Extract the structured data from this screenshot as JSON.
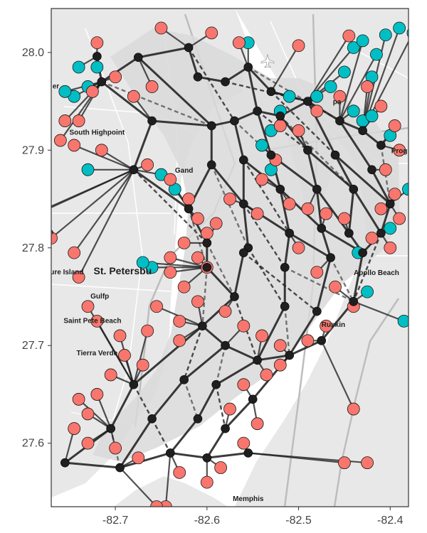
{
  "chart_data": {
    "type": "scatter",
    "xlim": [
      -82.77,
      -82.38
    ],
    "ylim": [
      27.535,
      28.045
    ],
    "x_ticks": [
      {
        "value": -82.7,
        "label": "-82.7"
      },
      {
        "value": -82.6,
        "label": "-82.6"
      },
      {
        "value": -82.5,
        "label": "-82.5"
      },
      {
        "value": -82.4,
        "label": "-82.4"
      }
    ],
    "y_ticks": [
      {
        "value": 27.6,
        "label": "27.6"
      },
      {
        "value": 27.7,
        "label": "27.7"
      },
      {
        "value": 27.8,
        "label": "27.8"
      },
      {
        "value": 27.9,
        "label": "27.9"
      },
      {
        "value": 28.0,
        "label": "28.0"
      }
    ],
    "grid": false,
    "legend": "none",
    "colors": {
      "panel_border": "#333333",
      "water": "#ffffff",
      "land": "#e8e8e8",
      "service_area": "#d9d9d9",
      "road": "#ffffff",
      "highway": "#bdbdbd",
      "red_points": "#f8766d",
      "teal_points": "#00bfc4",
      "hub": "#1f1f1f",
      "edge": "#1a1a1a"
    },
    "place_labels": [
      {
        "name": "South Highpoint",
        "lon": -82.72,
        "lat": 27.916
      },
      {
        "name": "Gand",
        "lon": -82.625,
        "lat": 27.877
      },
      {
        "name": "St. Petersbu",
        "lon": -82.692,
        "lat": 27.773,
        "big": true
      },
      {
        "name": "ure Island",
        "lon": -82.753,
        "lat": 27.773
      },
      {
        "name": "Gulfp",
        "lon": -82.717,
        "lat": 27.748
      },
      {
        "name": "Saint Pete Beach",
        "lon": -82.725,
        "lat": 27.723
      },
      {
        "name": "Tierra Verde",
        "lon": -82.72,
        "lat": 27.69
      },
      {
        "name": "Apollo Beach",
        "lon": -82.415,
        "lat": 27.772
      },
      {
        "name": "Ruskin",
        "lon": -82.462,
        "lat": 27.719
      },
      {
        "name": "Prog",
        "lon": -82.39,
        "lat": 27.897
      },
      {
        "name": "pa",
        "lon": -82.458,
        "lat": 27.947
      },
      {
        "name": "er",
        "lon": -82.765,
        "lat": 27.963
      },
      {
        "name": "n",
        "lon": -82.77,
        "lat": 27.814
      },
      {
        "name": "Memphis",
        "lon": -82.555,
        "lat": 27.541
      }
    ],
    "hubs": [
      [
        -82.72,
        27.996
      ],
      [
        -82.715,
        27.97
      ],
      [
        -82.675,
        27.995
      ],
      [
        -82.62,
        28.005
      ],
      [
        -82.61,
        27.975
      ],
      [
        -82.58,
        27.97
      ],
      [
        -82.555,
        27.985
      ],
      [
        -82.53,
        27.96
      ],
      [
        -82.66,
        27.93
      ],
      [
        -82.595,
        27.925
      ],
      [
        -82.57,
        27.93
      ],
      [
        -82.545,
        27.94
      ],
      [
        -82.52,
        27.935
      ],
      [
        -82.49,
        27.95
      ],
      [
        -82.455,
        27.93
      ],
      [
        -82.43,
        27.92
      ],
      [
        -82.41,
        27.905
      ],
      [
        -82.68,
        27.88
      ],
      [
        -82.595,
        27.885
      ],
      [
        -82.56,
        27.89
      ],
      [
        -82.53,
        27.895
      ],
      [
        -82.49,
        27.9
      ],
      [
        -82.46,
        27.895
      ],
      [
        -82.42,
        27.88
      ],
      [
        -82.62,
        27.84
      ],
      [
        -82.56,
        27.845
      ],
      [
        -82.52,
        27.86
      ],
      [
        -82.48,
        27.86
      ],
      [
        -82.44,
        27.86
      ],
      [
        -82.4,
        27.845
      ],
      [
        -82.6,
        27.805
      ],
      [
        -82.555,
        27.8
      ],
      [
        -82.51,
        27.815
      ],
      [
        -82.475,
        27.82
      ],
      [
        -82.445,
        27.815
      ],
      [
        -82.41,
        27.815
      ],
      [
        -82.6,
        27.78
      ],
      [
        -82.56,
        27.795
      ],
      [
        -82.515,
        27.78
      ],
      [
        -82.465,
        27.79
      ],
      [
        -82.43,
        27.795
      ],
      [
        -82.57,
        27.75
      ],
      [
        -82.515,
        27.74
      ],
      [
        -82.48,
        27.735
      ],
      [
        -82.44,
        27.745
      ],
      [
        -82.605,
        27.72
      ],
      [
        -82.58,
        27.7
      ],
      [
        -82.545,
        27.685
      ],
      [
        -82.51,
        27.69
      ],
      [
        -82.475,
        27.705
      ],
      [
        -82.68,
        27.66
      ],
      [
        -82.625,
        27.665
      ],
      [
        -82.59,
        27.66
      ],
      [
        -82.55,
        27.645
      ],
      [
        -82.705,
        27.615
      ],
      [
        -82.66,
        27.625
      ],
      [
        -82.61,
        27.625
      ],
      [
        -82.58,
        27.615
      ],
      [
        -82.755,
        27.58
      ],
      [
        -82.695,
        27.575
      ],
      [
        -82.64,
        27.59
      ],
      [
        -82.6,
        27.585
      ],
      [
        -82.555,
        27.59
      ]
    ],
    "red_points": [
      [
        -82.72,
        28.01
      ],
      [
        -82.65,
        28.025
      ],
      [
        -82.595,
        28.02
      ],
      [
        -82.565,
        28.01
      ],
      [
        -82.5,
        28.007
      ],
      [
        -82.445,
        28.017
      ],
      [
        -82.755,
        27.93
      ],
      [
        -82.725,
        27.96
      ],
      [
        -82.74,
        27.93
      ],
      [
        -82.66,
        27.965
      ],
      [
        -82.7,
        27.975
      ],
      [
        -82.68,
        27.955
      ],
      [
        -82.745,
        27.905
      ],
      [
        -82.715,
        27.9
      ],
      [
        -82.665,
        27.885
      ],
      [
        -82.64,
        27.87
      ],
      [
        -82.76,
        27.91
      ],
      [
        -82.62,
        27.85
      ],
      [
        -82.61,
        27.83
      ],
      [
        -82.6,
        27.815
      ],
      [
        -82.59,
        27.825
      ],
      [
        -82.575,
        27.85
      ],
      [
        -82.545,
        27.835
      ],
      [
        -82.54,
        27.87
      ],
      [
        -82.525,
        27.89
      ],
      [
        -82.52,
        27.925
      ],
      [
        -82.5,
        27.92
      ],
      [
        -82.48,
        27.94
      ],
      [
        -82.455,
        27.955
      ],
      [
        -82.425,
        27.965
      ],
      [
        -82.41,
        27.945
      ],
      [
        -82.395,
        27.925
      ],
      [
        -82.39,
        27.9
      ],
      [
        -82.405,
        27.88
      ],
      [
        -82.395,
        27.855
      ],
      [
        -82.41,
        27.84
      ],
      [
        -82.39,
        27.83
      ],
      [
        -82.4,
        27.8
      ],
      [
        -82.42,
        27.81
      ],
      [
        -82.45,
        27.83
      ],
      [
        -82.47,
        27.835
      ],
      [
        -82.49,
        27.84
      ],
      [
        -82.51,
        27.845
      ],
      [
        -82.5,
        27.8
      ],
      [
        -82.48,
        27.775
      ],
      [
        -82.46,
        27.76
      ],
      [
        -82.44,
        27.74
      ],
      [
        -82.47,
        27.72
      ],
      [
        -82.49,
        27.705
      ],
      [
        -82.52,
        27.7
      ],
      [
        -82.54,
        27.71
      ],
      [
        -82.56,
        27.72
      ],
      [
        -82.58,
        27.735
      ],
      [
        -82.61,
        27.745
      ],
      [
        -82.625,
        27.76
      ],
      [
        -82.64,
        27.775
      ],
      [
        -82.64,
        27.79
      ],
      [
        -82.625,
        27.805
      ],
      [
        -82.63,
        27.725
      ],
      [
        -82.63,
        27.705
      ],
      [
        -82.655,
        27.74
      ],
      [
        -82.665,
        27.715
      ],
      [
        -82.67,
        27.68
      ],
      [
        -82.705,
        27.67
      ],
      [
        -82.72,
        27.65
      ],
      [
        -82.74,
        27.645
      ],
      [
        -82.73,
        27.63
      ],
      [
        -82.745,
        27.615
      ],
      [
        -82.73,
        27.6
      ],
      [
        -82.7,
        27.595
      ],
      [
        -82.675,
        27.585
      ],
      [
        -82.63,
        27.57
      ],
      [
        -82.6,
        27.56
      ],
      [
        -82.585,
        27.575
      ],
      [
        -82.56,
        27.6
      ],
      [
        -82.575,
        27.635
      ],
      [
        -82.545,
        27.62
      ],
      [
        -82.56,
        27.66
      ],
      [
        -82.535,
        27.67
      ],
      [
        -82.52,
        27.68
      ],
      [
        -82.44,
        27.635
      ],
      [
        -82.45,
        27.58
      ],
      [
        -82.425,
        27.58
      ],
      [
        -82.645,
        27.535
      ],
      [
        -82.655,
        27.535
      ],
      [
        -82.785,
        27.835
      ],
      [
        -82.8,
        27.83
      ],
      [
        -82.77,
        27.81
      ],
      [
        -82.745,
        27.795
      ],
      [
        -82.74,
        27.77
      ],
      [
        -82.73,
        27.74
      ],
      [
        -82.72,
        27.725
      ],
      [
        -82.695,
        27.71
      ],
      [
        -82.69,
        27.69
      ],
      [
        -82.6,
        27.78
      ],
      [
        -82.61,
        27.79
      ]
    ],
    "teal_points": [
      [
        -82.555,
        28.01
      ],
      [
        -82.44,
        28.005
      ],
      [
        -82.43,
        28.012
      ],
      [
        -82.415,
        27.998
      ],
      [
        -82.405,
        28.018
      ],
      [
        -82.39,
        28.025
      ],
      [
        -82.375,
        28.02
      ],
      [
        -82.42,
        27.975
      ],
      [
        -82.45,
        27.98
      ],
      [
        -82.465,
        27.965
      ],
      [
        -82.48,
        27.955
      ],
      [
        -82.51,
        27.955
      ],
      [
        -82.52,
        27.94
      ],
      [
        -82.53,
        27.92
      ],
      [
        -82.54,
        27.905
      ],
      [
        -82.53,
        27.88
      ],
      [
        -82.44,
        27.94
      ],
      [
        -82.43,
        27.93
      ],
      [
        -82.42,
        27.935
      ],
      [
        -82.4,
        27.915
      ],
      [
        -82.38,
        27.86
      ],
      [
        -82.4,
        27.82
      ],
      [
        -82.73,
        27.965
      ],
      [
        -82.745,
        27.955
      ],
      [
        -82.755,
        27.96
      ],
      [
        -82.73,
        27.88
      ],
      [
        -82.65,
        27.875
      ],
      [
        -82.635,
        27.86
      ],
      [
        -82.66,
        27.78
      ],
      [
        -82.67,
        27.785
      ],
      [
        -82.435,
        27.795
      ],
      [
        -82.425,
        27.755
      ],
      [
        -82.385,
        27.725
      ],
      [
        -82.74,
        27.985
      ],
      [
        -82.72,
        27.985
      ]
    ],
    "edges": [
      [
        0,
        1
      ],
      [
        1,
        2
      ],
      [
        2,
        3
      ],
      [
        3,
        4
      ],
      [
        4,
        5
      ],
      [
        5,
        6
      ],
      [
        6,
        7
      ],
      [
        1,
        8
      ],
      [
        8,
        9
      ],
      [
        9,
        10
      ],
      [
        10,
        11
      ],
      [
        11,
        12
      ],
      [
        12,
        13
      ],
      [
        13,
        14
      ],
      [
        14,
        15
      ],
      [
        15,
        16
      ],
      [
        8,
        17
      ],
      [
        9,
        18
      ],
      [
        10,
        19
      ],
      [
        11,
        20
      ],
      [
        12,
        21
      ],
      [
        13,
        22
      ],
      [
        14,
        23
      ],
      [
        17,
        24
      ],
      [
        18,
        24
      ],
      [
        19,
        25
      ],
      [
        20,
        26
      ],
      [
        21,
        27
      ],
      [
        22,
        28
      ],
      [
        23,
        29
      ],
      [
        24,
        30
      ],
      [
        25,
        31
      ],
      [
        26,
        32
      ],
      [
        27,
        33
      ],
      [
        28,
        34
      ],
      [
        29,
        35
      ],
      [
        30,
        36
      ],
      [
        31,
        37
      ],
      [
        32,
        38
      ],
      [
        33,
        39
      ],
      [
        34,
        40
      ],
      [
        36,
        41
      ],
      [
        37,
        41
      ],
      [
        38,
        42
      ],
      [
        39,
        43
      ],
      [
        40,
        44
      ],
      [
        41,
        45
      ],
      [
        42,
        47
      ],
      [
        43,
        48
      ],
      [
        44,
        49
      ],
      [
        45,
        46
      ],
      [
        46,
        47
      ],
      [
        47,
        48
      ],
      [
        48,
        49
      ],
      [
        45,
        50
      ],
      [
        46,
        51
      ],
      [
        47,
        52
      ],
      [
        48,
        53
      ],
      [
        50,
        54
      ],
      [
        51,
        55
      ],
      [
        52,
        56
      ],
      [
        53,
        57
      ],
      [
        54,
        58
      ],
      [
        55,
        59
      ],
      [
        56,
        60
      ],
      [
        57,
        61
      ],
      [
        61,
        62
      ],
      [
        58,
        59
      ],
      [
        59,
        60
      ],
      [
        60,
        61
      ],
      [
        2,
        9
      ],
      [
        6,
        11
      ],
      [
        7,
        13
      ],
      [
        18,
        25
      ],
      [
        19,
        26
      ],
      [
        20,
        27
      ],
      [
        21,
        28
      ],
      [
        22,
        29
      ],
      [
        25,
        32
      ],
      [
        26,
        33
      ],
      [
        27,
        34
      ],
      [
        28,
        35
      ],
      [
        32,
        39
      ],
      [
        33,
        40
      ],
      [
        35,
        40
      ]
    ],
    "dashed_edges": [
      [
        5,
        13
      ],
      [
        6,
        14
      ],
      [
        7,
        22
      ],
      [
        10,
        20
      ],
      [
        11,
        21
      ],
      [
        12,
        28
      ],
      [
        17,
        30
      ],
      [
        18,
        31
      ],
      [
        19,
        32
      ],
      [
        24,
        36
      ],
      [
        25,
        38
      ],
      [
        30,
        41
      ],
      [
        31,
        42
      ],
      [
        36,
        45
      ],
      [
        37,
        43
      ],
      [
        38,
        44
      ],
      [
        41,
        47
      ],
      [
        42,
        48
      ],
      [
        45,
        51
      ],
      [
        46,
        52
      ],
      [
        50,
        55
      ],
      [
        51,
        56
      ],
      [
        52,
        57
      ],
      [
        54,
        59
      ],
      [
        55,
        60
      ],
      [
        1,
        9
      ],
      [
        3,
        10
      ],
      [
        16,
        29
      ],
      [
        35,
        44
      ],
      [
        39,
        44
      ]
    ]
  }
}
